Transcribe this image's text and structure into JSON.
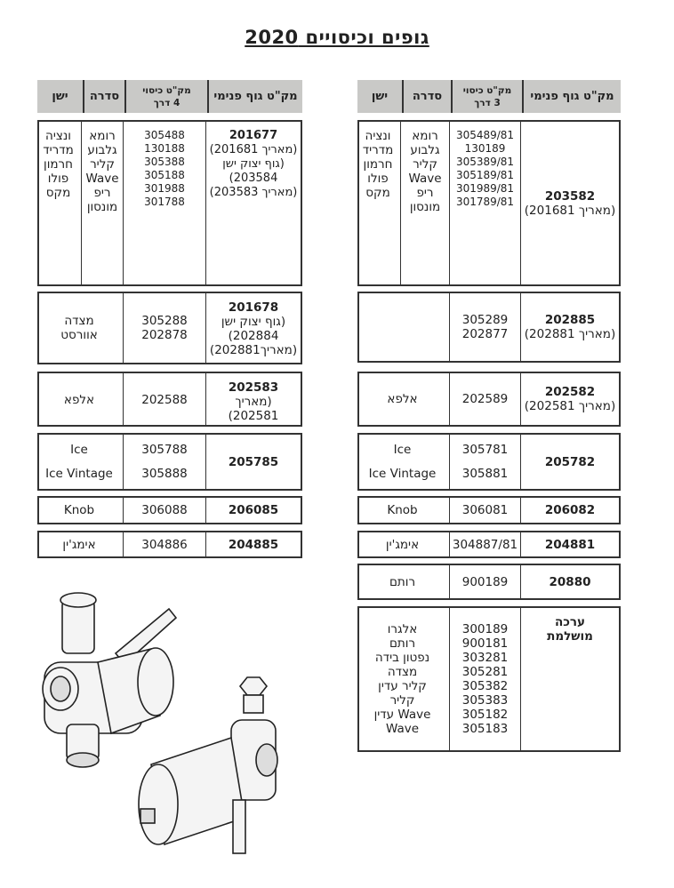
{
  "title": "גופים וכיסויים  2020",
  "left_table": {
    "headers": [
      "מק\"ט גוף פנימי",
      "מק\"ט כיסוי\n4 דרך",
      "סדרה",
      "ישן"
    ],
    "blocks": [
      {
        "body": [
          "201677",
          "(מאריך 201681)",
          "(גוף יצוק ישן",
          "203584)",
          "(מאריך 203583)"
        ],
        "cover": [
          "305488",
          "130188",
          "305388",
          "305188",
          "301988",
          "301788"
        ],
        "series": [
          "רומא",
          "גלבוע",
          "קליר",
          "Wave",
          "ריפ",
          "מונסון"
        ],
        "old": [
          "ונציה",
          "מדריד",
          "חרמון",
          "פולו",
          "מקס"
        ]
      },
      {
        "body": [
          "201678",
          "(גוף יצוק ישן",
          "202884)",
          "(מאריך202881)"
        ],
        "cover": [
          "305288",
          "202878"
        ],
        "series": [
          "מצדה",
          "אוורסט"
        ]
      },
      {
        "body": [
          "202583",
          "(מאריך 202581)"
        ],
        "cover": [
          "202588"
        ],
        "series": [
          "אלפא"
        ]
      },
      {
        "body": [
          "205785"
        ],
        "cover": [
          "305788",
          "305888"
        ],
        "series": [
          "Ice",
          "Ice Vintage"
        ]
      },
      {
        "body": [
          "206085"
        ],
        "cover": [
          "306088"
        ],
        "series": [
          "Knob"
        ]
      },
      {
        "body": [
          "204885"
        ],
        "cover": [
          "304886"
        ],
        "series": [
          "אימג'ין"
        ]
      }
    ]
  },
  "right_table": {
    "headers": [
      "מק\"ט גוף פנימי",
      "מק\"ט כיסוי\n3 דרך",
      "סדרה",
      "ישן"
    ],
    "blocks": [
      {
        "body": [
          "203582",
          "(מאריך 201681)"
        ],
        "cover": [
          "305489/81",
          "130189",
          "305389/81",
          "305189/81",
          "301989/81",
          "301789/81"
        ],
        "series": [
          "רומא",
          "גלבוע",
          "קליר",
          "Wave",
          "ריפ",
          "מונסון"
        ],
        "old": [
          "ונציה",
          "מדריד",
          "חרמון",
          "פולו",
          "מקס"
        ]
      },
      {
        "body": [
          "202885",
          "(מאריך 202881)"
        ],
        "cover": [
          "305289",
          "202877"
        ],
        "series": []
      },
      {
        "body": [
          "202582",
          "(מאריך 202581)"
        ],
        "cover": [
          "202589"
        ],
        "series": [
          "אלפא"
        ]
      },
      {
        "body": [
          "205782"
        ],
        "cover": [
          "305781",
          "305881"
        ],
        "series": [
          "Ice",
          "Ice Vintage"
        ]
      },
      {
        "body": [
          "206082"
        ],
        "cover": [
          "306081"
        ],
        "series": [
          "Knob"
        ]
      },
      {
        "body": [
          "204881"
        ],
        "cover": [
          "304887/81"
        ],
        "series": [
          "אימג'ין"
        ]
      },
      {
        "body": [
          "20880"
        ],
        "cover": [
          "900189"
        ],
        "series": [
          "רותם"
        ]
      },
      {
        "body": [
          "ערכה",
          "מושלמת"
        ],
        "body_all_bold": true,
        "cover": [
          "300189",
          "900181",
          "303281",
          "305281",
          "305382",
          "305383",
          "305182",
          "305183"
        ],
        "series": [
          "אלגרו",
          "רותם",
          "נפטון בידה",
          "מצדה",
          "קליר עדין",
          "קליר",
          "Wave עדין",
          "Wave"
        ]
      }
    ]
  }
}
